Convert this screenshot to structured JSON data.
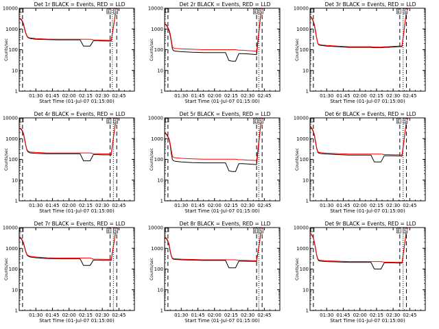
{
  "figure": {
    "common": {
      "type": "line",
      "ylabel": "Counts/sec",
      "xlabel": "Start Time (01-Jul-07 01:15:00)",
      "x_ticks": [
        "01:30",
        "01:45",
        "02:00",
        "02:15",
        "02:30",
        "02:45"
      ],
      "y_ticks": [
        "1",
        "10",
        "100",
        "1000",
        "10000"
      ],
      "y_scale": "log",
      "ylim": [
        1,
        10000
      ],
      "xlim": [
        "01:15",
        "02:59"
      ],
      "series": [
        {
          "name": "Events",
          "color": "#000000"
        },
        {
          "name": "LLD",
          "color": "#ff0000"
        }
      ],
      "markers": [
        "E",
        "S"
      ],
      "colors": {
        "events": "#000000",
        "lld": "#ff0000",
        "axis": "#000000"
      }
    },
    "chart_data": [
      {
        "title": "Det 1r BLACK = Events, RED = LLD",
        "x": [
          15,
          16,
          17,
          18,
          19,
          20,
          21,
          22,
          23,
          24,
          25,
          30,
          40,
          50,
          60,
          70,
          73,
          76,
          79,
          82,
          85,
          90,
          95,
          98,
          101,
          102,
          103,
          104
        ],
        "events": [
          3200,
          3000,
          2700,
          2200,
          1500,
          900,
          600,
          440,
          380,
          360,
          345,
          320,
          305,
          300,
          300,
          300,
          150,
          150,
          150,
          270,
          270,
          265,
          260,
          258,
          2600,
          6500,
          9000,
          10000
        ],
        "lld": [
          3400,
          3200,
          2900,
          2400,
          1700,
          1000,
          650,
          470,
          400,
          380,
          370,
          345,
          325,
          320,
          320,
          320,
          320,
          320,
          320,
          300,
          300,
          290,
          285,
          280,
          2800,
          7000,
          9500,
          10000
        ],
        "markers": {
          "E": 96,
          "S": 102
        },
        "dashed": [
          18,
          97,
          103
        ],
        "dotted": [
          99
        ]
      },
      {
        "title": "Det 2r BLACK = Events, RED = LLD",
        "x": [
          15,
          16,
          17,
          18,
          19,
          20,
          21,
          22,
          23,
          25,
          30,
          40,
          50,
          60,
          70,
          73,
          76,
          79,
          82,
          85,
          90,
          95,
          98,
          101,
          102,
          103,
          104
        ],
        "events": [
          1700,
          1600,
          1400,
          1100,
          800,
          500,
          250,
          110,
          90,
          85,
          80,
          75,
          72,
          72,
          72,
          30,
          28,
          28,
          65,
          65,
          63,
          60,
          58,
          2000,
          6000,
          9000,
          10000
        ],
        "lld": [
          1800,
          1700,
          1500,
          1200,
          900,
          600,
          300,
          140,
          120,
          115,
          110,
          105,
          100,
          100,
          100,
          100,
          100,
          100,
          95,
          95,
          90,
          88,
          85,
          2200,
          6500,
          9500,
          10000
        ],
        "markers": {
          "E": 97,
          "S": 102
        },
        "dashed": [
          18,
          98,
          103
        ],
        "dotted": [
          100
        ]
      },
      {
        "title": "Det 3r BLACK = Events, RED = LLD",
        "x": [
          15,
          16,
          17,
          18,
          19,
          20,
          21,
          22,
          23,
          25,
          30,
          40,
          50,
          60,
          70,
          73,
          76,
          79,
          82,
          85,
          90,
          95,
          98,
          101,
          102,
          103,
          104
        ],
        "events": [
          4000,
          3600,
          3000,
          2200,
          1400,
          700,
          350,
          200,
          170,
          160,
          150,
          140,
          130,
          130,
          130,
          125,
          125,
          125,
          130,
          130,
          135,
          140,
          142,
          2500,
          6500,
          9000,
          10000
        ],
        "lld": [
          4200,
          3800,
          3200,
          2400,
          1600,
          800,
          380,
          210,
          180,
          170,
          160,
          150,
          140,
          140,
          140,
          135,
          135,
          135,
          140,
          140,
          145,
          150,
          152,
          2700,
          7000,
          9500,
          10000
        ],
        "markers": {
          "E": 95,
          "S": 101
        },
        "dashed": [
          18,
          96,
          102
        ],
        "dotted": [
          99
        ]
      },
      {
        "title": "Det 4r BLACK = Events, RED = LLD",
        "x": [
          15,
          16,
          17,
          18,
          19,
          20,
          21,
          22,
          23,
          24,
          25,
          30,
          40,
          50,
          60,
          70,
          73,
          76,
          79,
          82,
          85,
          90,
          95,
          98,
          101,
          102,
          103,
          104
        ],
        "events": [
          3200,
          3000,
          2700,
          2200,
          1500,
          800,
          450,
          280,
          230,
          215,
          205,
          195,
          185,
          185,
          185,
          185,
          85,
          85,
          85,
          170,
          170,
          165,
          165,
          163,
          2600,
          6500,
          9000,
          10000
        ],
        "lld": [
          3400,
          3200,
          2900,
          2400,
          1700,
          900,
          480,
          300,
          250,
          235,
          225,
          215,
          205,
          205,
          205,
          205,
          205,
          205,
          205,
          190,
          190,
          185,
          185,
          182,
          2800,
          7000,
          9500,
          10000
        ],
        "markers": {
          "E": 96,
          "S": 102
        },
        "dashed": [
          18,
          97,
          103
        ],
        "dotted": [
          100
        ]
      },
      {
        "title": "Det 5r BLACK = Events, RED = LLD",
        "x": [
          15,
          16,
          17,
          18,
          19,
          20,
          21,
          22,
          23,
          25,
          30,
          40,
          50,
          60,
          70,
          73,
          76,
          79,
          82,
          85,
          90,
          95,
          98,
          101,
          102,
          103,
          104
        ],
        "events": [
          1800,
          1700,
          1500,
          1200,
          900,
          500,
          200,
          100,
          85,
          80,
          75,
          70,
          68,
          68,
          68,
          28,
          26,
          26,
          62,
          62,
          60,
          58,
          56,
          2000,
          6000,
          9000,
          10000
        ],
        "lld": [
          1900,
          1800,
          1600,
          1300,
          1000,
          600,
          280,
          140,
          125,
          118,
          112,
          106,
          102,
          102,
          102,
          102,
          102,
          102,
          96,
          96,
          92,
          90,
          88,
          2200,
          6500,
          9500,
          10000
        ],
        "markers": {
          "E": 97,
          "S": 102
        },
        "dashed": [
          18,
          98,
          103
        ],
        "dotted": [
          100
        ]
      },
      {
        "title": "Det 6r BLACK = Events, RED = LLD",
        "x": [
          15,
          16,
          17,
          18,
          19,
          20,
          21,
          22,
          23,
          25,
          30,
          40,
          50,
          60,
          70,
          73,
          76,
          79,
          82,
          85,
          90,
          95,
          98,
          101,
          102,
          103,
          104
        ],
        "events": [
          3600,
          3300,
          2800,
          2100,
          1300,
          650,
          330,
          220,
          200,
          190,
          180,
          170,
          160,
          160,
          160,
          75,
          75,
          75,
          150,
          150,
          148,
          146,
          144,
          2500,
          6500,
          9000,
          10000
        ],
        "lld": [
          3800,
          3500,
          3000,
          2300,
          1500,
          750,
          360,
          240,
          220,
          210,
          200,
          190,
          180,
          180,
          180,
          180,
          180,
          180,
          170,
          170,
          168,
          166,
          164,
          2700,
          7000,
          9500,
          10000
        ],
        "markers": {
          "E": 95,
          "S": 101
        },
        "dashed": [
          18,
          96,
          102
        ],
        "dotted": [
          99
        ]
      },
      {
        "title": "Det 7r BLACK = Events, RED = LLD",
        "x": [
          15,
          16,
          17,
          18,
          19,
          20,
          21,
          22,
          23,
          24,
          25,
          30,
          40,
          50,
          60,
          70,
          73,
          76,
          79,
          82,
          85,
          90,
          95,
          98,
          101,
          102,
          103,
          104
        ],
        "events": [
          3500,
          3200,
          2800,
          2200,
          1600,
          1000,
          650,
          480,
          420,
          400,
          380,
          350,
          320,
          310,
          310,
          310,
          150,
          150,
          150,
          270,
          270,
          265,
          262,
          258,
          2600,
          6500,
          9000,
          10000
        ],
        "lld": [
          3700,
          3400,
          3000,
          2400,
          1800,
          1100,
          700,
          510,
          450,
          430,
          410,
          380,
          350,
          340,
          340,
          340,
          340,
          340,
          340,
          300,
          300,
          295,
          292,
          288,
          2800,
          7000,
          9500,
          10000
        ],
        "markers": {
          "E": 96,
          "S": 102
        },
        "dashed": [
          18,
          97,
          103
        ],
        "dotted": [
          100
        ]
      },
      {
        "title": "Det 8r BLACK = Events, RED = LLD",
        "x": [
          15,
          16,
          17,
          18,
          19,
          20,
          21,
          22,
          23,
          25,
          30,
          40,
          50,
          60,
          70,
          73,
          76,
          79,
          82,
          85,
          90,
          95,
          98,
          101,
          102,
          103,
          104
        ],
        "events": [
          3400,
          3100,
          2700,
          2100,
          1400,
          700,
          420,
          320,
          300,
          290,
          280,
          270,
          260,
          260,
          260,
          115,
          115,
          115,
          240,
          240,
          238,
          236,
          234,
          2500,
          6500,
          9000,
          10000
        ],
        "lld": [
          3600,
          3300,
          2900,
          2300,
          1600,
          800,
          450,
          340,
          320,
          310,
          300,
          290,
          280,
          280,
          280,
          280,
          280,
          280,
          260,
          260,
          258,
          256,
          254,
          2700,
          7000,
          9500,
          10000
        ],
        "markers": {
          "E": 97,
          "S": 102
        },
        "dashed": [
          18,
          98,
          103
        ],
        "dotted": [
          100
        ]
      },
      {
        "title": "Det 9r BLACK = Events, RED = LLD",
        "x": [
          15,
          16,
          17,
          18,
          19,
          20,
          21,
          22,
          23,
          25,
          30,
          40,
          50,
          60,
          70,
          73,
          76,
          79,
          82,
          85,
          90,
          95,
          98,
          101,
          102,
          103,
          104
        ],
        "events": [
          5200,
          4800,
          4000,
          3000,
          1800,
          900,
          450,
          300,
          250,
          240,
          230,
          220,
          210,
          210,
          210,
          100,
          100,
          100,
          200,
          200,
          198,
          196,
          194,
          2600,
          7000,
          9500,
          10000
        ],
        "lld": [
          5500,
          5000,
          4200,
          3200,
          2000,
          1000,
          480,
          320,
          270,
          260,
          250,
          240,
          230,
          230,
          230,
          230,
          230,
          230,
          215,
          215,
          213,
          211,
          209,
          2800,
          7500,
          9800,
          10000
        ],
        "markers": {
          "E": 95,
          "S": 101
        },
        "dashed": [
          18,
          96,
          102
        ],
        "dotted": [
          99
        ]
      }
    ]
  }
}
